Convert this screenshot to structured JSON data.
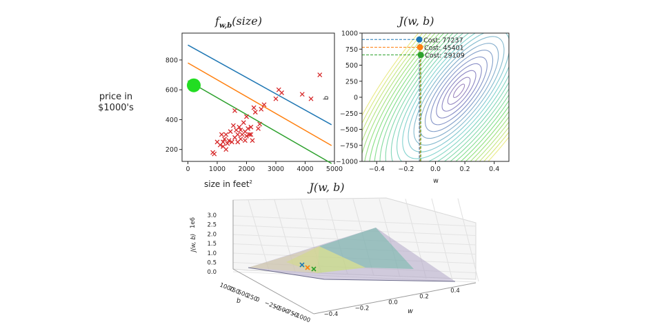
{
  "annotations": {
    "price_label_line1": "price in",
    "price_label_line2": "$1000's",
    "size_label": "size in feet",
    "size_label_sup": "2"
  },
  "chart_data": [
    {
      "type": "scatter",
      "title": "f_{w,b}(size)",
      "title_main": "f",
      "title_sub": "w,b",
      "title_rest": "(size)",
      "xlim": [
        -200,
        5000
      ],
      "ylim": [
        120,
        980
      ],
      "xticks": [
        0,
        1000,
        2000,
        3000,
        4000,
        5000
      ],
      "yticks": [
        200,
        400,
        600,
        800
      ],
      "points_color": "#d62728",
      "points": [
        [
          900,
          170
        ],
        [
          850,
          180
        ],
        [
          1000,
          250
        ],
        [
          1100,
          230
        ],
        [
          1150,
          300
        ],
        [
          1200,
          250
        ],
        [
          1200,
          220
        ],
        [
          1250,
          270
        ],
        [
          1300,
          200
        ],
        [
          1300,
          300
        ],
        [
          1350,
          240
        ],
        [
          1400,
          260
        ],
        [
          1450,
          320
        ],
        [
          1500,
          250
        ],
        [
          1550,
          360
        ],
        [
          1600,
          280
        ],
        [
          1650,
          330
        ],
        [
          1700,
          250
        ],
        [
          1700,
          300
        ],
        [
          1750,
          350
        ],
        [
          1800,
          270
        ],
        [
          1800,
          330
        ],
        [
          1850,
          300
        ],
        [
          1900,
          380
        ],
        [
          1950,
          320
        ],
        [
          2000,
          290
        ],
        [
          2000,
          420
        ],
        [
          2050,
          340
        ],
        [
          2100,
          300
        ],
        [
          2150,
          350
        ],
        [
          2200,
          260
        ],
        [
          2250,
          480
        ],
        [
          2300,
          450
        ],
        [
          2400,
          340
        ],
        [
          2450,
          370
        ],
        [
          2500,
          470
        ],
        [
          2600,
          500
        ],
        [
          3000,
          540
        ],
        [
          3100,
          600
        ],
        [
          3200,
          580
        ],
        [
          3900,
          570
        ],
        [
          4200,
          540
        ],
        [
          4500,
          700
        ],
        [
          1600,
          460
        ],
        [
          2150,
          300
        ],
        [
          1950,
          260
        ]
      ],
      "lines": [
        {
          "color": "#1f77b4",
          "w": -0.109,
          "b": 900
        },
        {
          "color": "#ff7f0e",
          "w": -0.113,
          "b": 780
        },
        {
          "color": "#2ca02c",
          "w": -0.113,
          "b": 660
        }
      ],
      "marker": {
        "x": 200,
        "y": 630,
        "color": "#22dd22"
      }
    },
    {
      "type": "contour",
      "title": "J(w, b)",
      "xlabel": "w",
      "ylabel": "b",
      "xlim": [
        -0.5,
        0.5
      ],
      "ylim": [
        -1000,
        1000
      ],
      "xticks": [
        -0.4,
        -0.2,
        0.0,
        0.2,
        0.4
      ],
      "xtick_labels": [
        "−0.4",
        "−0.2",
        "0.0",
        "0.2",
        "0.4"
      ],
      "yticks": [
        1000,
        750,
        500,
        250,
        0,
        -250,
        -500,
        -750,
        -1000
      ],
      "ytick_labels": [
        "1000",
        "750",
        "500",
        "250",
        "0",
        "−250",
        "−500",
        "−750",
        "−1000"
      ],
      "center": [
        0.16,
        100
      ],
      "points": [
        {
          "w": -0.11,
          "b": 900,
          "cost_label": "Cost: 77237",
          "color": "#1f77b4"
        },
        {
          "w": -0.105,
          "b": 780,
          "cost_label": "Cost: 45401",
          "color": "#ff7f0e"
        },
        {
          "w": -0.1,
          "b": 660,
          "cost_label": "Cost: 29109",
          "color": "#2ca02c"
        }
      ]
    },
    {
      "type": "surface",
      "title": "J(w, b)",
      "zlabel": "J(w, b)",
      "z_multiplier": "1e6",
      "zticks": [
        "3.0",
        "2.5",
        "2.0",
        "1.5",
        "1.0",
        "0.5",
        "0.0"
      ],
      "w_ticks": [
        "−0.4",
        "−0.2",
        "0.0",
        "0.2",
        "0.4"
      ],
      "w_label": "w",
      "b_ticks": [
        "1000",
        "750",
        "500",
        "250",
        "0",
        "−250",
        "−500",
        "−750",
        "−1000"
      ],
      "b_label": "b",
      "points_colors": [
        "#1f77b4",
        "#ff7f0e",
        "#2ca02c"
      ]
    }
  ]
}
